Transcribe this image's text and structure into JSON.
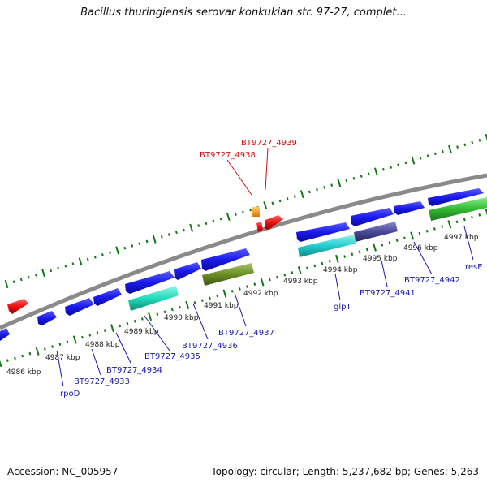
{
  "title": "Bacillus thuringiensis serovar konkukian str. 97-27, complet...",
  "footer": {
    "accession": "Accession: NC_005957",
    "summary": "Topology: circular; Length: 5,237,682 bp; Genes: 5,263"
  },
  "scale_labels": [
    "4986 kbp",
    "4987 kbp",
    "4988 kbp",
    "4989 kbp",
    "4990 kbp",
    "4991 kbp",
    "4992 kbp",
    "4993 kbp",
    "4994 kbp",
    "4995 kbp",
    "4996 kbp",
    "4997 kbp"
  ],
  "reverse_gene_labels": [
    "BT9727_4938",
    "BT9727_4939"
  ],
  "forward_gene_labels": [
    "rpoD",
    "BT9727_4933",
    "BT9727_4934",
    "BT9727_4935",
    "BT9727_4936",
    "BT9727_4937",
    "glpT",
    "BT9727_4941",
    "BT9727_4942",
    "resE"
  ],
  "colors": {
    "forward_gene": "#1a1aee",
    "reverse_gene": "#ee1111",
    "orange_feature": "#ff9900",
    "backbone": "#8a8a8a",
    "tick": "#117711",
    "label_forward": "#1a1aaa",
    "label_reverse": "#cc1111",
    "aqua_cds": "#22ccbb",
    "olive_cds": "#6b8e23",
    "cyan_cds": "#22cccc",
    "slate_cds": "#4a4a9a",
    "green_cds": "#33bb33"
  }
}
